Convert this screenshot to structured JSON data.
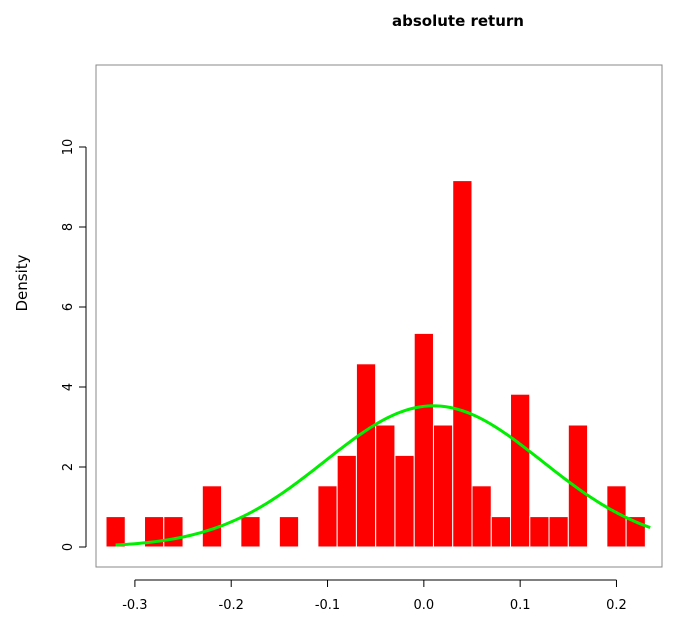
{
  "chart_data": {
    "type": "bar",
    "title": "absolute return",
    "xlabel": "",
    "ylabel": "Density",
    "xlim": [
      -0.33,
      0.24
    ],
    "ylim": [
      0,
      11.6
    ],
    "x_ticks": [
      -0.3,
      -0.2,
      -0.1,
      0.0,
      0.1,
      0.2
    ],
    "x_tick_labels": [
      "-0.3",
      "-0.2",
      "-0.1",
      "0.0",
      "0.1",
      "0.2"
    ],
    "y_ticks": [
      0,
      2,
      4,
      6,
      8,
      10
    ],
    "y_tick_labels": [
      "0",
      "2",
      "4",
      "6",
      "8",
      "10"
    ],
    "bin_width": 0.02,
    "bins": [
      {
        "x0": -0.33,
        "density": 0.76
      },
      {
        "x0": -0.29,
        "density": 0.76
      },
      {
        "x0": -0.27,
        "density": 0.76
      },
      {
        "x0": -0.23,
        "density": 1.53
      },
      {
        "x0": -0.19,
        "density": 0.76
      },
      {
        "x0": -0.15,
        "density": 0.76
      },
      {
        "x0": -0.11,
        "density": 1.53
      },
      {
        "x0": -0.09,
        "density": 2.29
      },
      {
        "x0": -0.07,
        "density": 4.58
      },
      {
        "x0": -0.05,
        "density": 3.05
      },
      {
        "x0": -0.03,
        "density": 2.29
      },
      {
        "x0": -0.01,
        "density": 5.34
      },
      {
        "x0": 0.01,
        "density": 3.05
      },
      {
        "x0": 0.03,
        "density": 9.16
      },
      {
        "x0": 0.05,
        "density": 1.53
      },
      {
        "x0": 0.07,
        "density": 0.76
      },
      {
        "x0": 0.09,
        "density": 3.82
      },
      {
        "x0": 0.11,
        "density": 0.76
      },
      {
        "x0": 0.13,
        "density": 0.76
      },
      {
        "x0": 0.15,
        "density": 3.05
      },
      {
        "x0": 0.19,
        "density": 1.53
      },
      {
        "x0": 0.21,
        "density": 0.76
      }
    ],
    "density_curve": {
      "mean": 0.01,
      "sd": 0.113
    },
    "colors": {
      "bars": "#ff0000",
      "bar_border": "#ffffff",
      "curve": "#00ee00",
      "axis": "#000000",
      "box": "#888888"
    }
  }
}
